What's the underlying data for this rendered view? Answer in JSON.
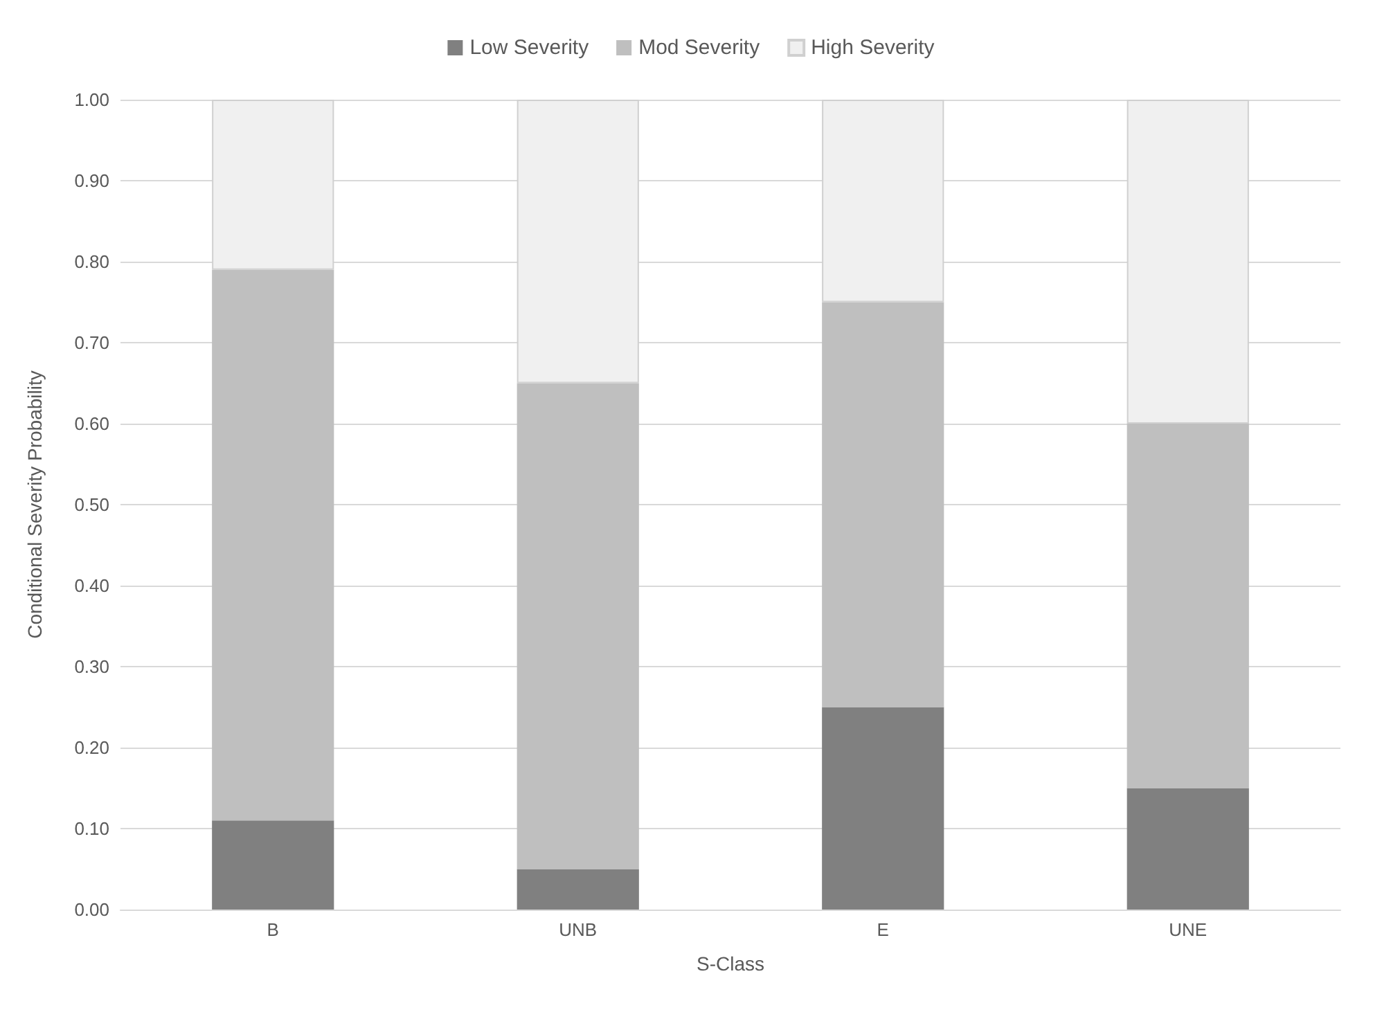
{
  "chart_data": {
    "type": "bar",
    "stacked": true,
    "xlabel": "S-Class",
    "ylabel": "Conditional Severity Probability",
    "categories": [
      "B",
      "UNB",
      "E",
      "UNE"
    ],
    "series": [
      {
        "name": "Low Severity",
        "color": "#808080",
        "values": [
          0.11,
          0.05,
          0.25,
          0.15
        ]
      },
      {
        "name": "Mod Severity",
        "color": "#bfbfbf",
        "values": [
          0.68,
          0.6,
          0.5,
          0.45
        ]
      },
      {
        "name": "High Severity",
        "color": "#f0f0f0",
        "values": [
          0.21,
          0.35,
          0.25,
          0.4
        ]
      }
    ],
    "ylim": [
      0,
      1
    ],
    "yticks": [
      {
        "value": 0,
        "label": "0.00"
      },
      {
        "value": 0.1,
        "label": "0.10"
      },
      {
        "value": 0.2,
        "label": "0.20"
      },
      {
        "value": 0.3,
        "label": "0.30"
      },
      {
        "value": 0.4,
        "label": "0.40"
      },
      {
        "value": 0.5,
        "label": "0.50"
      },
      {
        "value": 0.6,
        "label": "0.60"
      },
      {
        "value": 0.7,
        "label": "0.70"
      },
      {
        "value": 0.8,
        "label": "0.80"
      },
      {
        "value": 0.9,
        "label": "0.90"
      },
      {
        "value": 1,
        "label": "1.00"
      }
    ],
    "grid": "y",
    "legend": "top"
  }
}
